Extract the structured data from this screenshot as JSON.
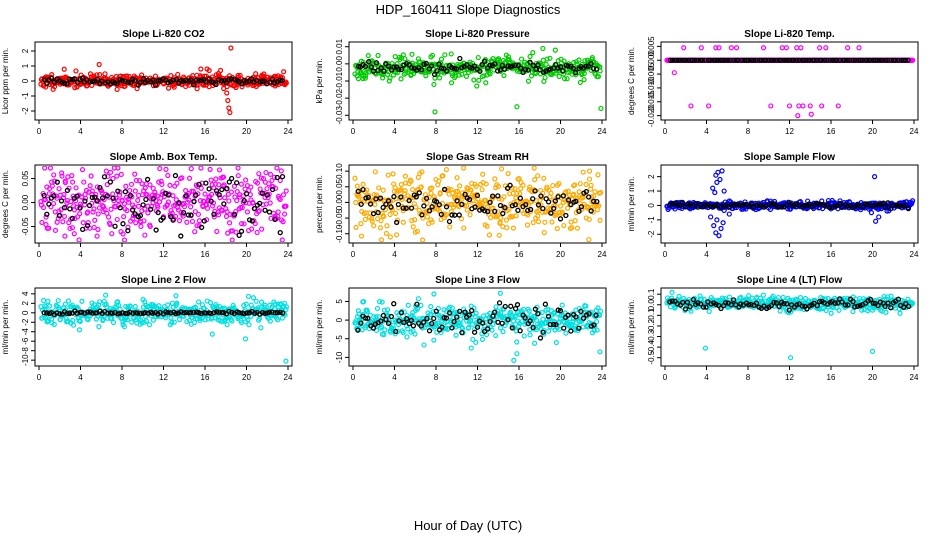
{
  "figure": {
    "title": "HDP_160411  Slope Diagnostics",
    "xlabel": "Hour of Day (UTC)"
  },
  "chart_data": [
    {
      "type": "scatter",
      "title": "Slope Li-820 CO2",
      "ylabel": "Licor ppm per min.",
      "xlim": [
        0,
        24
      ],
      "xticks": [
        0,
        4,
        8,
        12,
        16,
        20,
        24
      ],
      "ylim": [
        -2.4,
        2.4
      ],
      "yticks": [
        -2,
        -1,
        0,
        1,
        2
      ],
      "ytick_labels": [
        "-2",
        "-1",
        "0",
        "1",
        "2"
      ],
      "color": "#ff0000",
      "base": 0.0,
      "spread": 0.22,
      "black_spread": 0.12,
      "outliers": [
        [
          5.8,
          1.1
        ],
        [
          15.6,
          0.8
        ],
        [
          16.2,
          0.8
        ],
        [
          16.4,
          0.7
        ],
        [
          17.5,
          0.7
        ],
        [
          17.8,
          -0.5
        ],
        [
          18.1,
          -0.8
        ],
        [
          18.2,
          -1.3
        ],
        [
          18.4,
          -2.1
        ],
        [
          18.5,
          2.2
        ],
        [
          18.3,
          -1.8
        ],
        [
          17.3,
          0.5
        ]
      ],
      "seed": 11
    },
    {
      "type": "scatter",
      "title": "Slope Li-820 Pressure",
      "ylabel": "kPa per min.",
      "xlim": [
        0,
        24
      ],
      "xticks": [
        0,
        4,
        8,
        12,
        16,
        20,
        24
      ],
      "ylim": [
        -0.031,
        0.011
      ],
      "yticks": [
        -0.03,
        -0.02,
        -0.01,
        0,
        0.01
      ],
      "ytick_labels": [
        "-0.03",
        "-0.02",
        "-0.01",
        "0.00",
        "0.01"
      ],
      "color": "#00cc00",
      "base": -0.002,
      "spread": 0.003,
      "black_spread": 0.0015,
      "outliers": [
        [
          7.9,
          -0.028
        ],
        [
          7.8,
          -0.012
        ],
        [
          15.8,
          -0.025
        ],
        [
          18.3,
          0.009
        ],
        [
          19.5,
          0.008
        ],
        [
          23.9,
          -0.026
        ],
        [
          3.5,
          -0.01
        ],
        [
          12.8,
          -0.011
        ],
        [
          9.5,
          -0.011
        ]
      ],
      "seed": 23
    },
    {
      "type": "scatter",
      "title": "Slope Li-820 Temp.",
      "ylabel": "degrees C per min.",
      "xlim": [
        0,
        24
      ],
      "xticks": [
        0,
        4,
        8,
        12,
        16,
        20,
        24
      ],
      "ylim": [
        -0.0205,
        0.0055
      ],
      "yticks": [
        -0.02,
        -0.015,
        -0.01,
        -0.005,
        0,
        0.005
      ],
      "ytick_labels": [
        "-0.020",
        "-0.015",
        "-0.010",
        "-0.005",
        "0.000",
        "0.005"
      ],
      "color": "#ff00ff",
      "base": 0.0,
      "spread": 0.0,
      "black_spread": 0.0,
      "outliers": [
        [
          1.8,
          0.0045
        ],
        [
          3.5,
          0.0045
        ],
        [
          4.9,
          0.0045
        ],
        [
          5.2,
          0.0045
        ],
        [
          6.4,
          0.0045
        ],
        [
          6.9,
          0.0045
        ],
        [
          9.5,
          0.0045
        ],
        [
          11.3,
          0.0045
        ],
        [
          11.7,
          0.0045
        ],
        [
          12.7,
          0.0045
        ],
        [
          13.1,
          0.0045
        ],
        [
          14.9,
          0.0045
        ],
        [
          15.5,
          0.0045
        ],
        [
          17.6,
          0.0045
        ],
        [
          18.7,
          0.0045
        ],
        [
          0.9,
          -0.0045
        ],
        [
          2.5,
          -0.0165
        ],
        [
          4.2,
          -0.0165
        ],
        [
          10.2,
          -0.0165
        ],
        [
          12.0,
          -0.0165
        ],
        [
          12.9,
          -0.0165
        ],
        [
          13.3,
          -0.0165
        ],
        [
          14.0,
          -0.0165
        ],
        [
          14.1,
          -0.0195
        ],
        [
          15.1,
          -0.0165
        ],
        [
          16.7,
          -0.0165
        ],
        [
          12.8,
          -0.02
        ]
      ],
      "seed": 37
    },
    {
      "type": "scatter",
      "title": "Slope Amb. Box Temp.",
      "ylabel": "degrees C per min.",
      "xlim": [
        0,
        24
      ],
      "xticks": [
        0,
        4,
        8,
        12,
        16,
        20,
        24
      ],
      "ylim": [
        -0.078,
        0.072
      ],
      "yticks": [
        -0.05,
        0,
        0.05
      ],
      "ytick_labels": [
        "-0.05",
        "0.00",
        "0.05"
      ],
      "color": "#ff00ff",
      "base": 0.0,
      "spread": 0.035,
      "black_spread": 0.03,
      "outliers": [
        [
          2.5,
          -0.07
        ],
        [
          3.4,
          -0.065
        ],
        [
          5.6,
          -0.07
        ],
        [
          10.2,
          -0.068
        ],
        [
          17.4,
          0.068
        ]
      ],
      "seed": 41
    },
    {
      "type": "scatter",
      "title": "Slope Gas Stream RH",
      "ylabel": "percent per min.",
      "xlim": [
        0,
        24
      ],
      "xticks": [
        0,
        4,
        8,
        12,
        16,
        20,
        24
      ],
      "ylim": [
        -0.12,
        0.11
      ],
      "yticks": [
        -0.1,
        -0.05,
        0,
        0.05,
        0.1
      ],
      "ytick_labels": [
        "-0.10",
        "-0.05",
        "0.00",
        "0.05",
        "0.10"
      ],
      "color": "#ffaa00",
      "base": 0.0,
      "spread": 0.045,
      "black_spread": 0.025,
      "outliers": [
        [
          3.6,
          -0.11
        ],
        [
          9.0,
          0.105
        ],
        [
          14.1,
          -0.105
        ],
        [
          17.8,
          0.085
        ],
        [
          22.8,
          0.1
        ],
        [
          6.3,
          0.08
        ],
        [
          12.5,
          0.09
        ]
      ],
      "seed": 53
    },
    {
      "type": "scatter",
      "title": "Slope Sample Flow",
      "ylabel": "ml/min per min.",
      "xlim": [
        0,
        24
      ],
      "xticks": [
        0,
        4,
        8,
        12,
        16,
        20,
        24
      ],
      "ylim": [
        -2.4,
        2.6
      ],
      "yticks": [
        -2,
        -1,
        0,
        1,
        2
      ],
      "ytick_labels": [
        "-2",
        "-1",
        "0",
        "1",
        "2"
      ],
      "color": "#0000ff",
      "base": 0.0,
      "spread": 0.12,
      "black_spread": 0.08,
      "outliers": [
        [
          4.6,
          1.2
        ],
        [
          4.9,
          2.1
        ],
        [
          5.1,
          2.3
        ],
        [
          5.3,
          1.8
        ],
        [
          5.5,
          2.4
        ],
        [
          5.0,
          1.6
        ],
        [
          4.8,
          0.9
        ],
        [
          5.7,
          1.0
        ],
        [
          4.7,
          -1.4
        ],
        [
          4.9,
          -1.9
        ],
        [
          5.2,
          -2.1
        ],
        [
          5.4,
          -1.6
        ],
        [
          5.0,
          -1.0
        ],
        [
          5.6,
          -1.2
        ],
        [
          4.4,
          -0.8
        ],
        [
          20.2,
          2.0
        ],
        [
          20.6,
          -0.8
        ],
        [
          20.3,
          -1.1
        ],
        [
          19.9,
          -0.5
        ],
        [
          6.2,
          -0.6
        ]
      ],
      "seed": 67
    },
    {
      "type": "scatter",
      "title": "Slope Line 2 Flow",
      "ylabel": "ml/min per min.",
      "xlim": [
        0,
        24
      ],
      "xticks": [
        0,
        4,
        8,
        12,
        16,
        20,
        24
      ],
      "ylim": [
        -10.6,
        4.6
      ],
      "yticks": [
        -10,
        -8,
        -6,
        -4,
        -2,
        0,
        2,
        4
      ],
      "ytick_labels": [
        "-10",
        "-8",
        "-6",
        "-4",
        "-2",
        "0",
        "2",
        "4"
      ],
      "color": "#00e0e0",
      "base": 0.0,
      "spread": 1.2,
      "black_spread": 0.15,
      "outliers": [
        [
          3.9,
          -3.6
        ],
        [
          16.7,
          -4.5
        ],
        [
          19.9,
          -5.5
        ],
        [
          23.8,
          -10.2
        ],
        [
          8.1,
          -2.5
        ],
        [
          13.2,
          3.6
        ]
      ],
      "seed": 79
    },
    {
      "type": "scatter",
      "title": "Slope Line 3 Flow",
      "ylabel": "ml/min per min.",
      "xlim": [
        0,
        24
      ],
      "xticks": [
        0,
        4,
        8,
        12,
        16,
        20,
        24
      ],
      "ylim": [
        -11.5,
        7.8
      ],
      "yticks": [
        -10,
        -5,
        0,
        5
      ],
      "ytick_labels": [
        "-10",
        "-5",
        "0",
        "5"
      ],
      "color": "#00e0e0",
      "base": 0.0,
      "spread": 2.0,
      "black_spread": 2.2,
      "outliers": [
        [
          7.8,
          7.0
        ],
        [
          14.2,
          7.2
        ],
        [
          15.5,
          -10.8
        ],
        [
          15.8,
          -9.0
        ],
        [
          23.8,
          -8.5
        ],
        [
          11.4,
          -7.5
        ],
        [
          17.5,
          -6.2
        ],
        [
          5.2,
          -4.5
        ],
        [
          19.6,
          -6.0
        ]
      ],
      "seed": 83
    },
    {
      "type": "scatter",
      "title": "Slope Line 4 (LT) Flow",
      "ylabel": "ml/min per min.",
      "xlim": [
        0,
        24
      ],
      "xticks": [
        0,
        4,
        8,
        12,
        16,
        20,
        24
      ],
      "ylim": [
        -0.55,
        0.13
      ],
      "yticks": [
        -0.5,
        -0.4,
        -0.3,
        -0.2,
        -0.1,
        0,
        0.1
      ],
      "ytick_labels": [
        "-0.5",
        "-0.4",
        "-0.3",
        "-0.2",
        "-0.1",
        "0.0",
        "0.1"
      ],
      "color": "#00e0e0",
      "base": 0.01,
      "spread": 0.035,
      "black_spread": 0.025,
      "outliers": [
        [
          3.9,
          -0.41
        ],
        [
          12.1,
          -0.5
        ],
        [
          20.0,
          -0.44
        ]
      ],
      "seed": 97
    }
  ]
}
